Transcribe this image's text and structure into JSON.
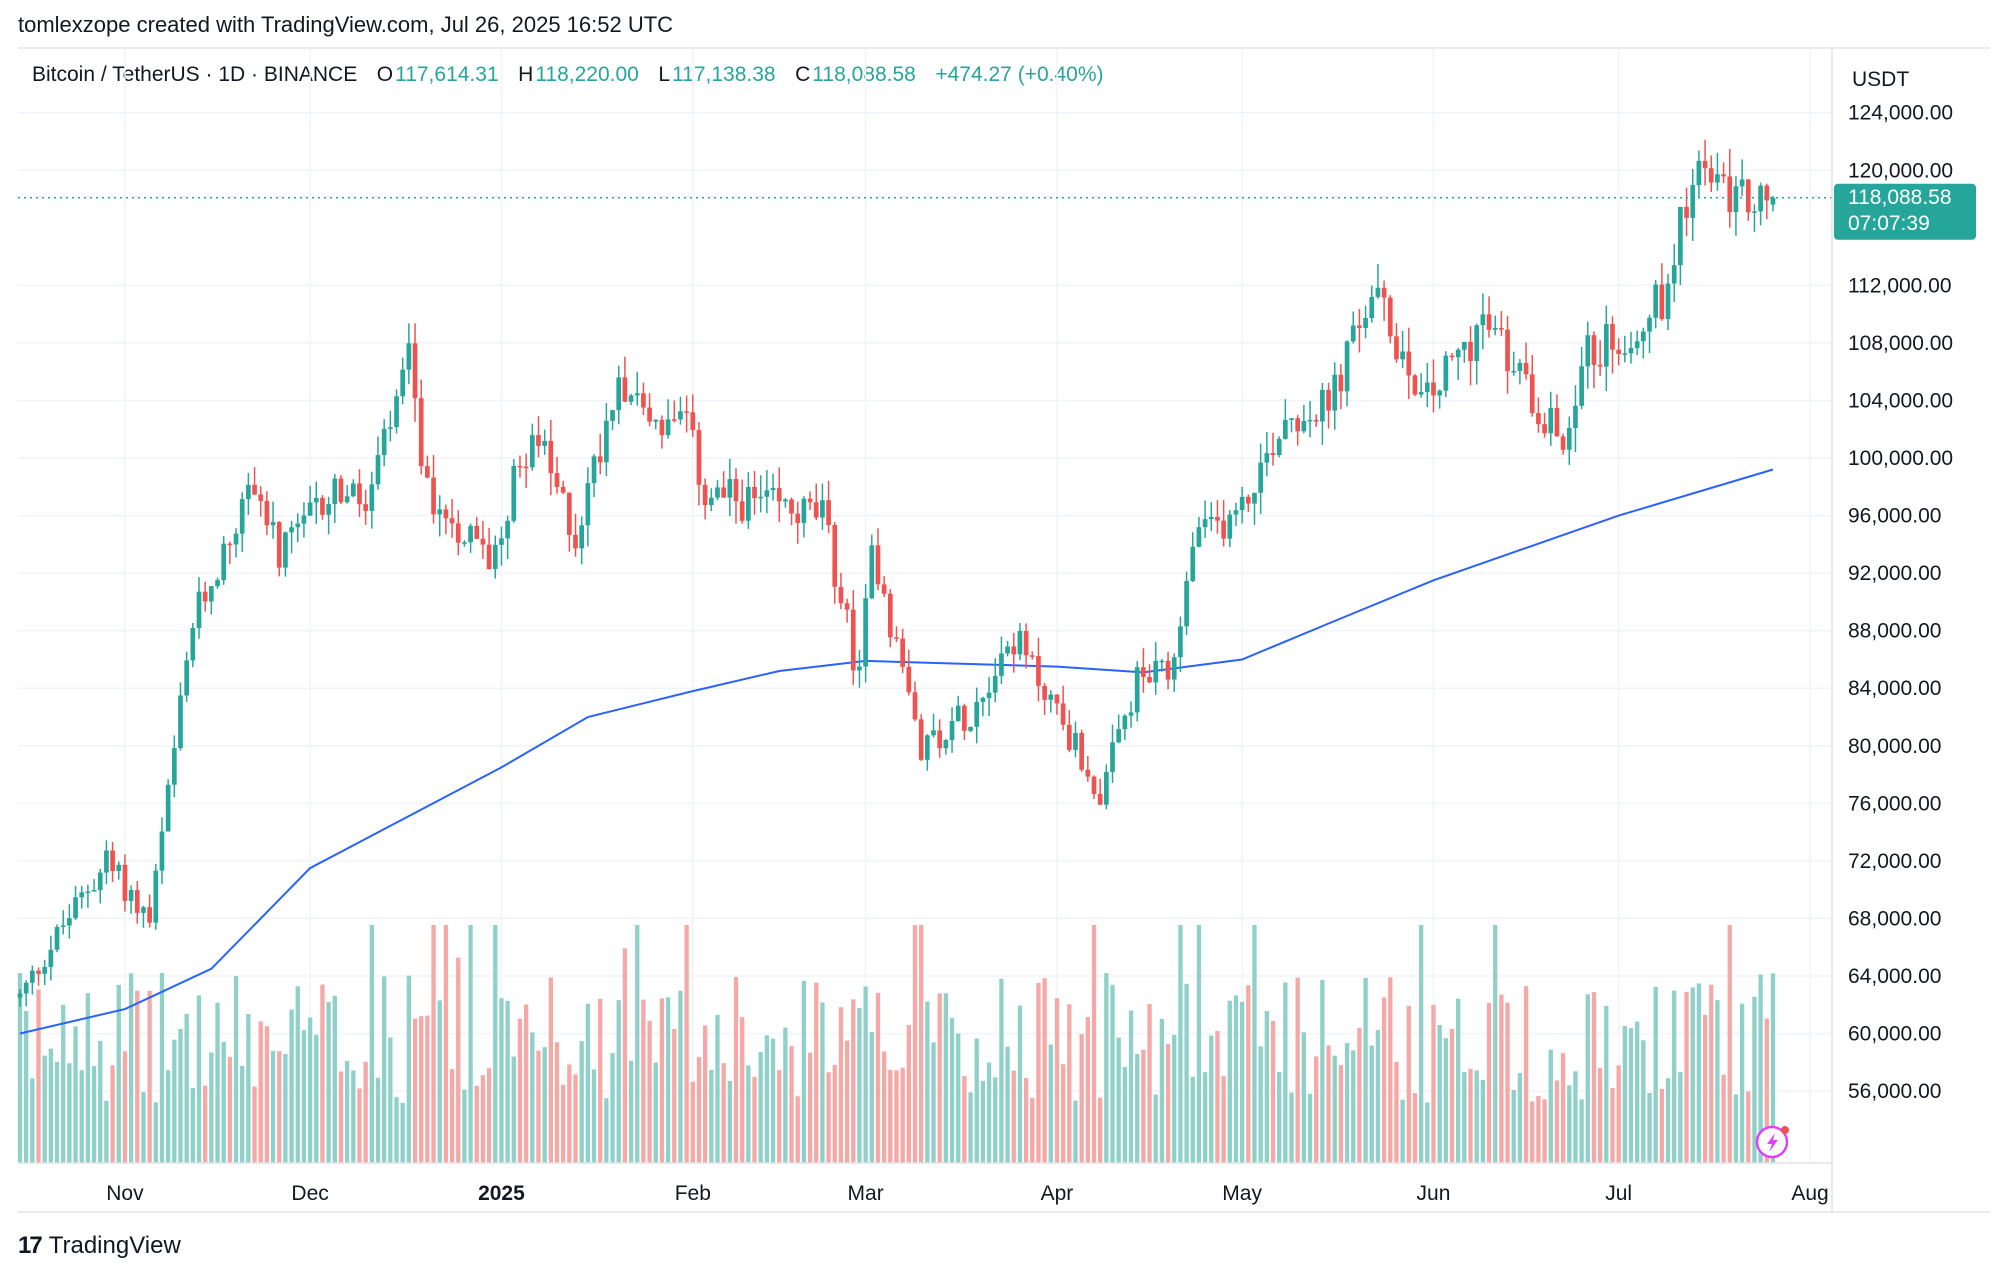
{
  "header": {
    "creator_line": "tomlexzope created with TradingView.com, Jul 26, 2025 16:52 UTC"
  },
  "legend": {
    "symbol": "Bitcoin / TetherUS · 1D · BINANCE",
    "o_label": "O",
    "o_value": "117,614.31",
    "h_label": "H",
    "h_value": "118,220.00",
    "l_label": "L",
    "l_value": "117,138.38",
    "c_label": "C",
    "c_value": "118,088.58",
    "change": "+474.27 (+0.40%)"
  },
  "footer": {
    "brand": "TradingView"
  },
  "price_axis": {
    "currency": "USDT",
    "ticks": [
      "124,000.00",
      "120,000.00",
      "112,000.00",
      "108,000.00",
      "104,000.00",
      "100,000.00",
      "96,000.00",
      "92,000.00",
      "88,000.00",
      "84,000.00",
      "80,000.00",
      "76,000.00",
      "72,000.00",
      "68,000.00",
      "64,000.00",
      "60,000.00",
      "56,000.00"
    ],
    "last_price": "118,088.58",
    "countdown": "07:07:39"
  },
  "colors": {
    "up": "#26a69a",
    "down": "#ef5350",
    "up_volume": "#8fd0c8",
    "down_volume": "#f5a9a7",
    "ma_line": "#2962ff",
    "grid": "#f0f3fa",
    "last_price_bg": "#26a69a"
  },
  "chart_data": {
    "type": "candlestick",
    "title": "Bitcoin / TetherUS · 1D · BINANCE",
    "ylabel": "USDT",
    "ylim": [
      51000,
      128500
    ],
    "x_ticks": [
      "Nov",
      "Dec",
      "2025",
      "Feb",
      "Mar",
      "Apr",
      "May",
      "Jun",
      "Jul",
      "Aug"
    ],
    "anchors": [
      [
        "2024-10-15",
        62500
      ],
      [
        "2024-10-22",
        67500
      ],
      [
        "2024-10-29",
        72000
      ],
      [
        "2024-11-05",
        67800
      ],
      [
        "2024-11-08",
        76500
      ],
      [
        "2024-11-12",
        88500
      ],
      [
        "2024-11-22",
        98500
      ],
      [
        "2024-11-26",
        93000
      ],
      [
        "2024-12-05",
        98000
      ],
      [
        "2024-12-10",
        96500
      ],
      [
        "2024-12-17",
        106500
      ],
      [
        "2024-12-20",
        97500
      ],
      [
        "2024-12-30",
        93000
      ],
      [
        "2025-01-06",
        102000
      ],
      [
        "2025-01-13",
        94500
      ],
      [
        "2025-01-20",
        106000
      ],
      [
        "2025-01-26",
        102500
      ],
      [
        "2025-01-31",
        102000
      ],
      [
        "2025-02-03",
        97500
      ],
      [
        "2025-02-15",
        96500
      ],
      [
        "2025-02-22",
        96000
      ],
      [
        "2025-02-28",
        84500
      ],
      [
        "2025-03-02",
        94000
      ],
      [
        "2025-03-10",
        80000
      ],
      [
        "2025-03-18",
        82500
      ],
      [
        "2025-03-25",
        87500
      ],
      [
        "2025-04-01",
        82500
      ],
      [
        "2025-04-08",
        76500
      ],
      [
        "2025-04-14",
        84500
      ],
      [
        "2025-04-20",
        85000
      ],
      [
        "2025-04-23",
        94000
      ],
      [
        "2025-05-01",
        96500
      ],
      [
        "2025-05-08",
        103000
      ],
      [
        "2025-05-15",
        103500
      ],
      [
        "2025-05-22",
        111500
      ],
      [
        "2025-05-31",
        104000
      ],
      [
        "2025-06-09",
        109500
      ],
      [
        "2025-06-17",
        104500
      ],
      [
        "2025-06-22",
        101000
      ],
      [
        "2025-06-25",
        107000
      ],
      [
        "2025-07-02",
        108500
      ],
      [
        "2025-07-09",
        111500
      ],
      [
        "2025-07-11",
        117500
      ],
      [
        "2025-07-14",
        119800
      ],
      [
        "2025-07-20",
        117800
      ],
      [
        "2025-07-26",
        118088.58
      ]
    ],
    "ma_series": {
      "points": [
        [
          "2024-10-15",
          60000
        ],
        [
          "2024-11-01",
          61700
        ],
        [
          "2024-11-15",
          64500
        ],
        [
          "2024-12-01",
          71500
        ],
        [
          "2025-01-01",
          78500
        ],
        [
          "2025-01-15",
          82000
        ],
        [
          "2025-02-01",
          83800
        ],
        [
          "2025-02-15",
          85200
        ],
        [
          "2025-03-01",
          85900
        ],
        [
          "2025-04-01",
          85500
        ],
        [
          "2025-04-15",
          85100
        ],
        [
          "2025-05-01",
          86000
        ],
        [
          "2025-05-15",
          88500
        ],
        [
          "2025-06-01",
          91500
        ],
        [
          "2025-06-15",
          93600
        ],
        [
          "2025-07-01",
          96000
        ],
        [
          "2025-07-26",
          99200
        ]
      ]
    },
    "last_candle": {
      "date": "2025-07-26",
      "open": 117614.31,
      "high": 118220.0,
      "low": 117138.38,
      "close": 118088.58
    }
  }
}
